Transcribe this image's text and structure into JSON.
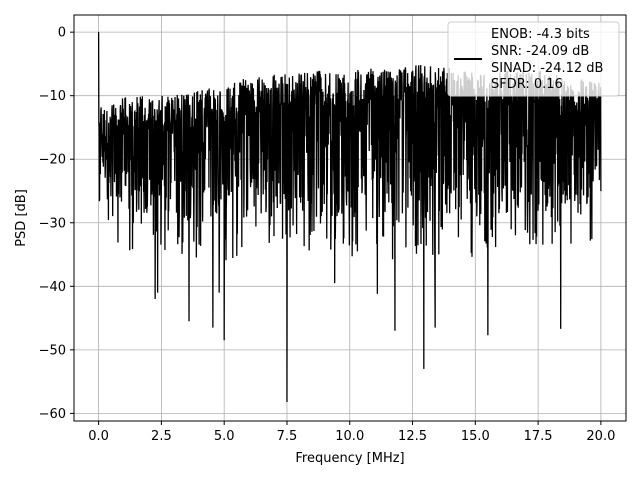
{
  "chart_data": {
    "type": "line",
    "title": "",
    "xlabel": "Frequency [MHz]",
    "ylabel": "PSD [dB]",
    "xlim": [
      -0.98,
      21.0
    ],
    "ylim": [
      -61.2,
      2.7
    ],
    "x_ticks": [
      0.0,
      2.5,
      5.0,
      7.5,
      10.0,
      12.5,
      15.0,
      17.5,
      20.0
    ],
    "x_tick_labels": [
      "0.0",
      "2.5",
      "5.0",
      "7.5",
      "10.0",
      "12.5",
      "15.0",
      "17.5",
      "20.0"
    ],
    "y_ticks": [
      0,
      -10,
      -20,
      -30,
      -40,
      -50,
      -60
    ],
    "y_tick_labels": [
      "0",
      "−10",
      "−20",
      "−30",
      "−40",
      "−50",
      "−60"
    ],
    "grid": true,
    "legend_position": "top-right",
    "line_color": "#000000",
    "series": [
      {
        "name": "ENOB: -4.3 bits\nSNR: -24.09 dB\nSINAD: -24.12 dB\nSFDR: 0.16",
        "legend_lines": [
          "ENOB: -4.3 bits",
          "SNR: -24.09 dB",
          "SINAD: -24.12 dB",
          "SFDR: 0.16"
        ],
        "x_range": [
          0.0,
          20.0
        ],
        "points": 2000,
        "spur": {
          "x": 0.0,
          "y": 0.0
        },
        "upper_envelope": {
          "x": [
            0.0,
            1.0,
            3.0,
            5.0,
            7.5,
            10.0,
            12.5,
            15.0,
            17.5,
            20.0
          ],
          "y": [
            -12,
            -10,
            -10,
            -8,
            -6,
            -6,
            -5,
            -6,
            -6,
            -8
          ]
        },
        "typical_floor": {
          "x": [
            0.0,
            2.5,
            5.0,
            7.5,
            10.0,
            12.5,
            15.0,
            17.5,
            20.0
          ],
          "y": [
            -27,
            -30,
            -30,
            -28,
            -30,
            -30,
            -30,
            -28,
            -27
          ]
        },
        "deep_dips": [
          {
            "x": 2.25,
            "y": -42
          },
          {
            "x": 2.35,
            "y": -41
          },
          {
            "x": 3.6,
            "y": -45.5
          },
          {
            "x": 4.8,
            "y": -41
          },
          {
            "x": 5.0,
            "y": -48.5
          },
          {
            "x": 4.55,
            "y": -46.5
          },
          {
            "x": 7.5,
            "y": -58.2
          },
          {
            "x": 9.4,
            "y": -39.5
          },
          {
            "x": 11.1,
            "y": -41.2
          },
          {
            "x": 11.8,
            "y": -47
          },
          {
            "x": 12.95,
            "y": -53
          },
          {
            "x": 13.4,
            "y": -46.5
          },
          {
            "x": 15.5,
            "y": -47.7
          },
          {
            "x": 18.4,
            "y": -46.7
          }
        ]
      }
    ]
  }
}
